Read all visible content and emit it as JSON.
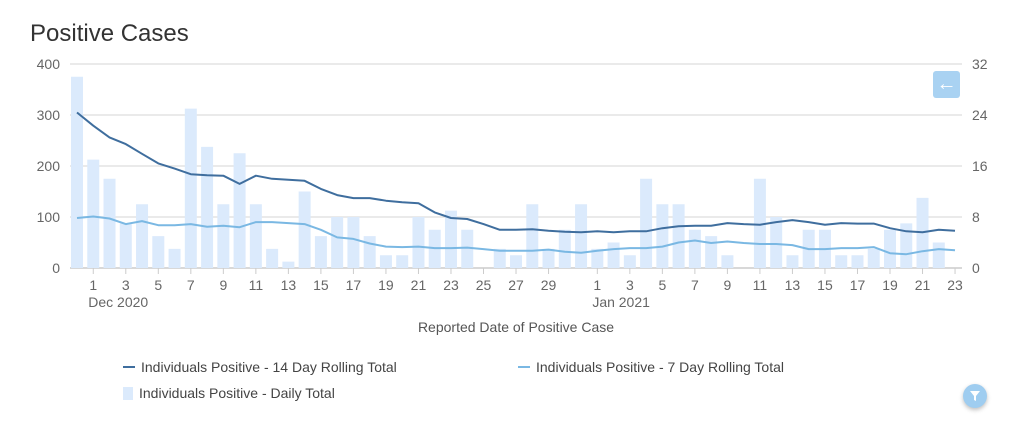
{
  "title": "Positive Cases",
  "buttons": {
    "back_icon": "arrow-left-icon",
    "filter_icon": "filter-icon"
  },
  "chart_data": {
    "type": "bar+line",
    "title": "Positive Cases",
    "xlabel": "Reported Date of Positive Case",
    "ylabel_left": "",
    "ylabel_right": "",
    "ylim_left": [
      0,
      400
    ],
    "ylim_right": [
      0,
      32
    ],
    "yticks_left": [
      "0",
      "100",
      "200",
      "300",
      "400"
    ],
    "yticks_right": [
      "0",
      "8",
      "16",
      "24",
      "32"
    ],
    "start_date": "2020-11-30",
    "xticks": [
      {
        "day": 1,
        "label": "1"
      },
      {
        "day": 3,
        "label": "3"
      },
      {
        "day": 5,
        "label": "5"
      },
      {
        "day": 7,
        "label": "7"
      },
      {
        "day": 9,
        "label": "9"
      },
      {
        "day": 11,
        "label": "11"
      },
      {
        "day": 13,
        "label": "13"
      },
      {
        "day": 15,
        "label": "15"
      },
      {
        "day": 17,
        "label": "17"
      },
      {
        "day": 19,
        "label": "19"
      },
      {
        "day": 21,
        "label": "21"
      },
      {
        "day": 23,
        "label": "23"
      },
      {
        "day": 25,
        "label": "25"
      },
      {
        "day": 27,
        "label": "27"
      },
      {
        "day": 29,
        "label": "29"
      },
      {
        "day": 32,
        "label": "1"
      },
      {
        "day": 34,
        "label": "3"
      },
      {
        "day": 36,
        "label": "5"
      },
      {
        "day": 38,
        "label": "7"
      },
      {
        "day": 40,
        "label": "9"
      },
      {
        "day": 42,
        "label": "11"
      },
      {
        "day": 44,
        "label": "13"
      },
      {
        "day": 46,
        "label": "15"
      },
      {
        "day": 48,
        "label": "17"
      },
      {
        "day": 50,
        "label": "19"
      },
      {
        "day": 52,
        "label": "21"
      },
      {
        "day": 54,
        "label": "23"
      }
    ],
    "month_labels": [
      {
        "day": 1,
        "label": "Dec 2020"
      },
      {
        "day": 32,
        "label": "Jan 2021"
      }
    ],
    "series": [
      {
        "name": "Individuals Positive - 14 Day Rolling Total",
        "type": "line",
        "axis": "left",
        "color": "#3f6e9e",
        "values": [
          305,
          279,
          256,
          243,
          224,
          205,
          195,
          184,
          182,
          181,
          165,
          181,
          175,
          173,
          171,
          155,
          143,
          137,
          137,
          132,
          129,
          127,
          109,
          98,
          96,
          86,
          75,
          75,
          76,
          73,
          71,
          70,
          72,
          70,
          72,
          72,
          78,
          82,
          83,
          83,
          88,
          86,
          85,
          90,
          94,
          90,
          85,
          88,
          87,
          87,
          78,
          72,
          70,
          75,
          73
        ]
      },
      {
        "name": "Individuals Positive - 7 Day Rolling Total",
        "type": "line",
        "axis": "left",
        "color": "#7ab8e3",
        "values": [
          98,
          101,
          97,
          86,
          92,
          84,
          84,
          86,
          81,
          83,
          80,
          90,
          90,
          88,
          86,
          75,
          60,
          57,
          48,
          42,
          41,
          42,
          39,
          39,
          40,
          37,
          34,
          34,
          34,
          36,
          32,
          30,
          34,
          37,
          39,
          39,
          42,
          50,
          54,
          49,
          52,
          49,
          47,
          47,
          45,
          37,
          37,
          39,
          39,
          41,
          29,
          27,
          33,
          37,
          35
        ]
      },
      {
        "name": "Individuals Positive - Daily Total",
        "type": "bar",
        "axis": "right",
        "color": "#dbeafc",
        "values": [
          30,
          17,
          14,
          7,
          10,
          5,
          3,
          25,
          19,
          10,
          18,
          10,
          3,
          1,
          12,
          5,
          8,
          8,
          5,
          2,
          2,
          8,
          6,
          9,
          6,
          0,
          3,
          2,
          10,
          3,
          6,
          10,
          3,
          4,
          2,
          14,
          10,
          10,
          6,
          5,
          2,
          0,
          14,
          8,
          2,
          6,
          6,
          2,
          2,
          3,
          6,
          7,
          11,
          4,
          0
        ]
      }
    ],
    "legend_placement": "bottom"
  }
}
